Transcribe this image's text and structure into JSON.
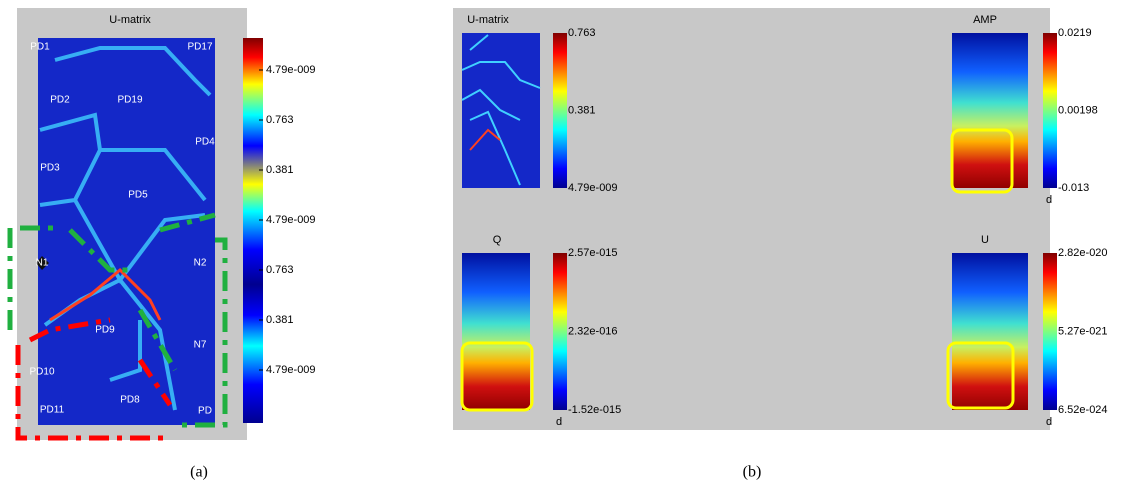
{
  "panel_a": {
    "title": "U-matrix",
    "colorbar_labels": [
      "4.79e-009",
      "0.763",
      "0.381",
      "4.79e-009",
      "0.763",
      "0.381",
      "4.79e-009"
    ],
    "nodes": [
      {
        "label": "PD1"
      },
      {
        "label": "PD17"
      },
      {
        "label": "PD2"
      },
      {
        "label": "PD19"
      },
      {
        "label": "PD4"
      },
      {
        "label": "PD3"
      },
      {
        "label": "PD5"
      },
      {
        "label": "N1"
      },
      {
        "label": "N2"
      },
      {
        "label": "PD9"
      },
      {
        "label": "N7"
      },
      {
        "label": "PD10"
      },
      {
        "label": "PD8"
      },
      {
        "label": "PD11"
      },
      {
        "label": "PD"
      }
    ],
    "caption": "(a)"
  },
  "panel_b": {
    "maps": [
      {
        "title": "U-matrix",
        "colorbar_labels": [
          "0.763",
          "0.381",
          "4.79e-009"
        ]
      },
      {
        "title": "AMP",
        "colorbar_labels": [
          "0.0219",
          "0.00198",
          "-0.013"
        ],
        "unit": "d"
      },
      {
        "title": "Q",
        "colorbar_labels": [
          "2.57e-015",
          "2.32e-016",
          "-1.52e-015"
        ],
        "unit": "d"
      },
      {
        "title": "U",
        "colorbar_labels": [
          "2.82e-020",
          "5.27e-021",
          "6.52e-024"
        ],
        "unit": "d"
      }
    ],
    "caption": "(b)"
  }
}
